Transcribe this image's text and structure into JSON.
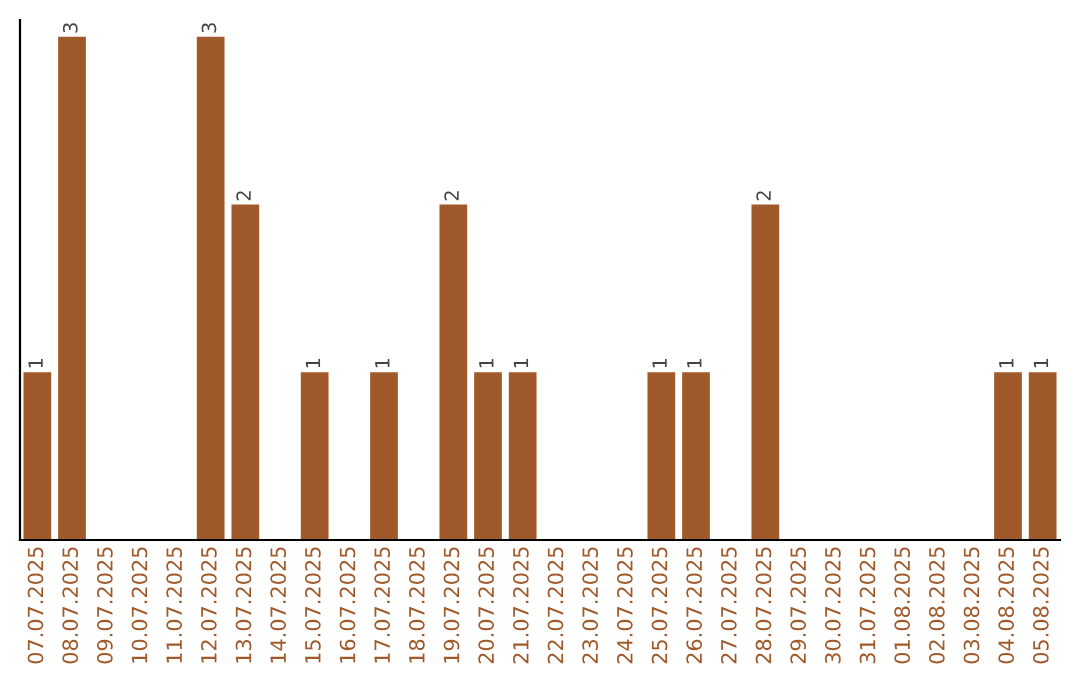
{
  "chart_data": {
    "type": "bar",
    "categories": [
      "07.07.2025",
      "08.07.2025",
      "09.07.2025",
      "10.07.2025",
      "11.07.2025",
      "12.07.2025",
      "13.07.2025",
      "14.07.2025",
      "15.07.2025",
      "16.07.2025",
      "17.07.2025",
      "18.07.2025",
      "19.07.2025",
      "20.07.2025",
      "21.07.2025",
      "22.07.2025",
      "23.07.2025",
      "24.07.2025",
      "25.07.2025",
      "26.07.2025",
      "27.07.2025",
      "28.07.2025",
      "29.07.2025",
      "30.07.2025",
      "31.07.2025",
      "01.08.2025",
      "02.08.2025",
      "03.08.2025",
      "04.08.2025",
      "05.08.2025"
    ],
    "values": [
      1,
      3,
      0,
      0,
      0,
      3,
      2,
      0,
      1,
      0,
      1,
      0,
      2,
      1,
      1,
      0,
      0,
      0,
      1,
      1,
      0,
      2,
      0,
      0,
      0,
      0,
      0,
      0,
      1,
      1
    ],
    "value_labels": [
      "1",
      "3",
      null,
      null,
      null,
      "3",
      "2",
      null,
      "1",
      null,
      "1",
      null,
      "2",
      "1",
      "1",
      null,
      null,
      null,
      "1",
      "1",
      null,
      "2",
      null,
      null,
      null,
      null,
      null,
      null,
      "1",
      "1"
    ],
    "color": "#a0592a",
    "ylim": [
      0,
      3.1
    ],
    "tick_labels": "x",
    "grid": false,
    "legend": false
  }
}
